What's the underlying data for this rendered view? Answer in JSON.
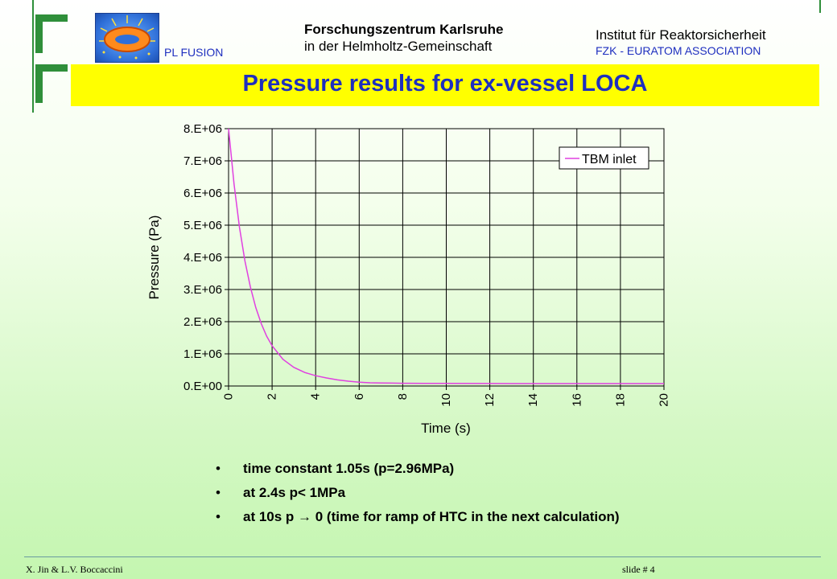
{
  "header": {
    "org_line1": "Forschungszentrum Karlsruhe",
    "org_line2": "in der Helmholtz-Gemeinschaft",
    "pl_fusion": "PL FUSION",
    "institute": "Institut für Reaktorsicherheit",
    "association": "FZK - EURATOM ASSOCIATION",
    "logo_icon": "fusion-torus-logo-icon"
  },
  "slide": {
    "title": "Pressure results for ex-vessel LOCA",
    "accent_color": "#ffff00",
    "title_color": "#1e2fbf"
  },
  "chart_data": {
    "type": "line",
    "xlabel": "Time (s)",
    "ylabel": "Pressure (Pa)",
    "xlim": [
      0,
      20
    ],
    "ylim": [
      0,
      8000000
    ],
    "x_ticks": [
      "0",
      "2",
      "4",
      "6",
      "8",
      "10",
      "12",
      "14",
      "16",
      "18",
      "20"
    ],
    "y_ticks": [
      "0.E+00",
      "1.E+06",
      "2.E+06",
      "3.E+06",
      "4.E+06",
      "5.E+06",
      "6.E+06",
      "7.E+06",
      "8.E+06"
    ],
    "grid": true,
    "legend_placement": "top-right",
    "series": [
      {
        "name": "TBM inlet",
        "color": "#e040e0",
        "x": [
          0,
          0.25,
          0.5,
          0.75,
          1,
          1.25,
          1.5,
          1.75,
          2,
          2.5,
          3,
          3.5,
          4,
          4.5,
          5,
          5.5,
          6,
          6.5,
          7,
          7.5,
          8,
          9,
          10,
          12,
          14,
          16,
          18,
          20
        ],
        "y": [
          8000000,
          6280000,
          4940000,
          3890000,
          3080000,
          2440000,
          1940000,
          1550000,
          1250000,
          830000,
          580000,
          420000,
          320000,
          250000,
          190000,
          150000,
          120000,
          100000,
          95000,
          90000,
          85000,
          82000,
          80000,
          78000,
          76000,
          75000,
          75000,
          75000
        ]
      }
    ]
  },
  "bullets": [
    "time constant 1.05s (p=2.96MPa)",
    "at 2.4s p< 1MPa",
    "at 10s  p → 0     (time for ramp of HTC in the next calculation)"
  ],
  "footer": {
    "authors": "X. Jin & L.V. Boccaccini",
    "slide_number": "slide # 4"
  }
}
